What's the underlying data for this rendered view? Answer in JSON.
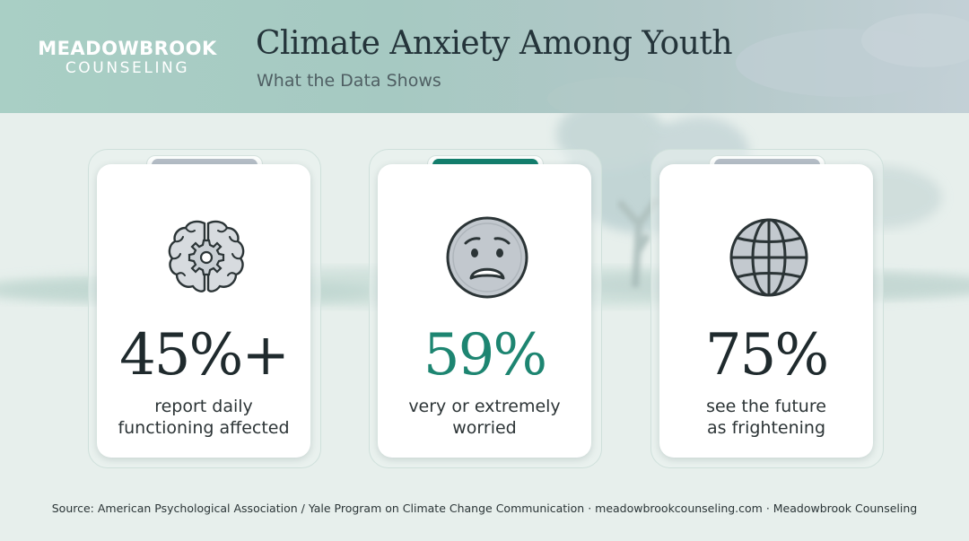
{
  "brand": {
    "line1": "MEADOWBROOK",
    "line2": "COUNSELING"
  },
  "header": {
    "title": "Climate Anxiety Among Youth",
    "subtitle": "What the Data Shows"
  },
  "colors": {
    "accent": "#1d8571",
    "tab_neutral": "#b6bec7",
    "tab_accent": "#137f6d",
    "ink": "#1f2a2d"
  },
  "cards": [
    {
      "icon": "brain-gear-icon",
      "stat": "45%+",
      "line1": "report daily",
      "line2": "functioning affected"
    },
    {
      "icon": "worried-face-icon",
      "stat": "59%",
      "line1": "very or extremely",
      "line2": "worried"
    },
    {
      "icon": "globe-icon",
      "stat": "75%",
      "line1": "see the future",
      "line2": "as frightening"
    }
  ],
  "footer": {
    "source": "Source: American Psychological Association / Yale Program on Climate Change Communication · meadowbrookcounseling.com · Meadowbrook Counseling"
  }
}
